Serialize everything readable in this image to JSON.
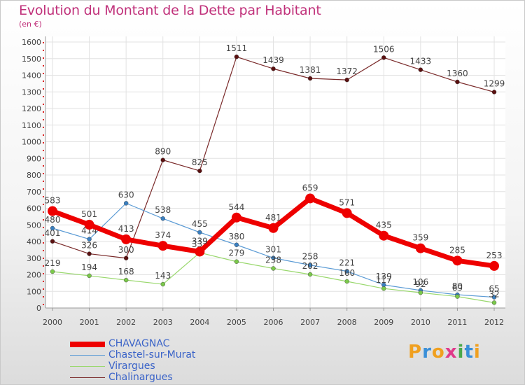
{
  "title": "Evolution du Montant de la Dette par Habitant",
  "subtitle": "(en €)",
  "logo": [
    "P",
    "r",
    "o",
    "x",
    "i",
    "t",
    "i"
  ],
  "logo_colors": [
    "#f0a020",
    "#3a8fd8",
    "#f0a020",
    "#e03a8a",
    "#4aa84a",
    "#3a8fd8",
    "#f0a020"
  ],
  "chart_data": {
    "type": "line",
    "x": [
      "2000",
      "2001",
      "2002",
      "2003",
      "2004",
      "2005",
      "2006",
      "2007",
      "2008",
      "2009",
      "2010",
      "2011",
      "2012"
    ],
    "ylim": [
      0,
      1600
    ],
    "yticks": [
      "0",
      "100",
      "200",
      "300",
      "400",
      "500",
      "600",
      "700",
      "800",
      "900",
      "1000",
      "1100",
      "1200",
      "1300",
      "1400",
      "1500",
      "1600"
    ],
    "grid": true,
    "legend": "bottom-left",
    "series": [
      {
        "name": "Chalinargues",
        "color": "#7a2a2a",
        "marker": "#5a1010",
        "values": [
          401,
          326,
          300,
          890,
          825,
          1511,
          1439,
          1381,
          1372,
          1506,
          1433,
          1360,
          1299
        ],
        "labels": [
          "401",
          "326",
          "300",
          "890",
          "825",
          "1511",
          "1439",
          "1381",
          "1372",
          "1506",
          "1433",
          "1360",
          "1299"
        ]
      },
      {
        "name": "Chastel-sur-Murat",
        "color": "#5b9bd5",
        "marker": "#3a7fc0",
        "values": [
          480,
          414,
          630,
          538,
          455,
          380,
          301,
          258,
          221,
          139,
          106,
          80,
          65
        ],
        "labels": [
          "480",
          "414",
          "630",
          "538",
          "455",
          "380",
          "301",
          "258",
          "221",
          "139",
          "106",
          "80",
          "65"
        ]
      },
      {
        "name": "Virargues",
        "color": "#9ad86e",
        "marker": "#7ac84a",
        "values": [
          219,
          194,
          168,
          143,
          333,
          279,
          238,
          202,
          160,
          117,
          92,
          69,
          32
        ],
        "labels": [
          "219",
          "194",
          "168",
          "143",
          "333",
          "279",
          "238",
          "202",
          "160",
          "117",
          "92",
          "69",
          "32"
        ]
      },
      {
        "name": "CHAVAGNAC",
        "color": "#ee0000",
        "marker": "#ee0000",
        "values": [
          583,
          501,
          413,
          374,
          339,
          544,
          481,
          659,
          571,
          435,
          359,
          285,
          253
        ],
        "labels": [
          "583",
          "501",
          "413",
          "374",
          "339",
          "544",
          "481",
          "659",
          "571",
          "435",
          "359",
          "285",
          "253"
        ]
      }
    ],
    "legend_order": [
      "CHAVAGNAC",
      "Chastel-sur-Murat",
      "Virargues",
      "Chalinargues"
    ]
  }
}
